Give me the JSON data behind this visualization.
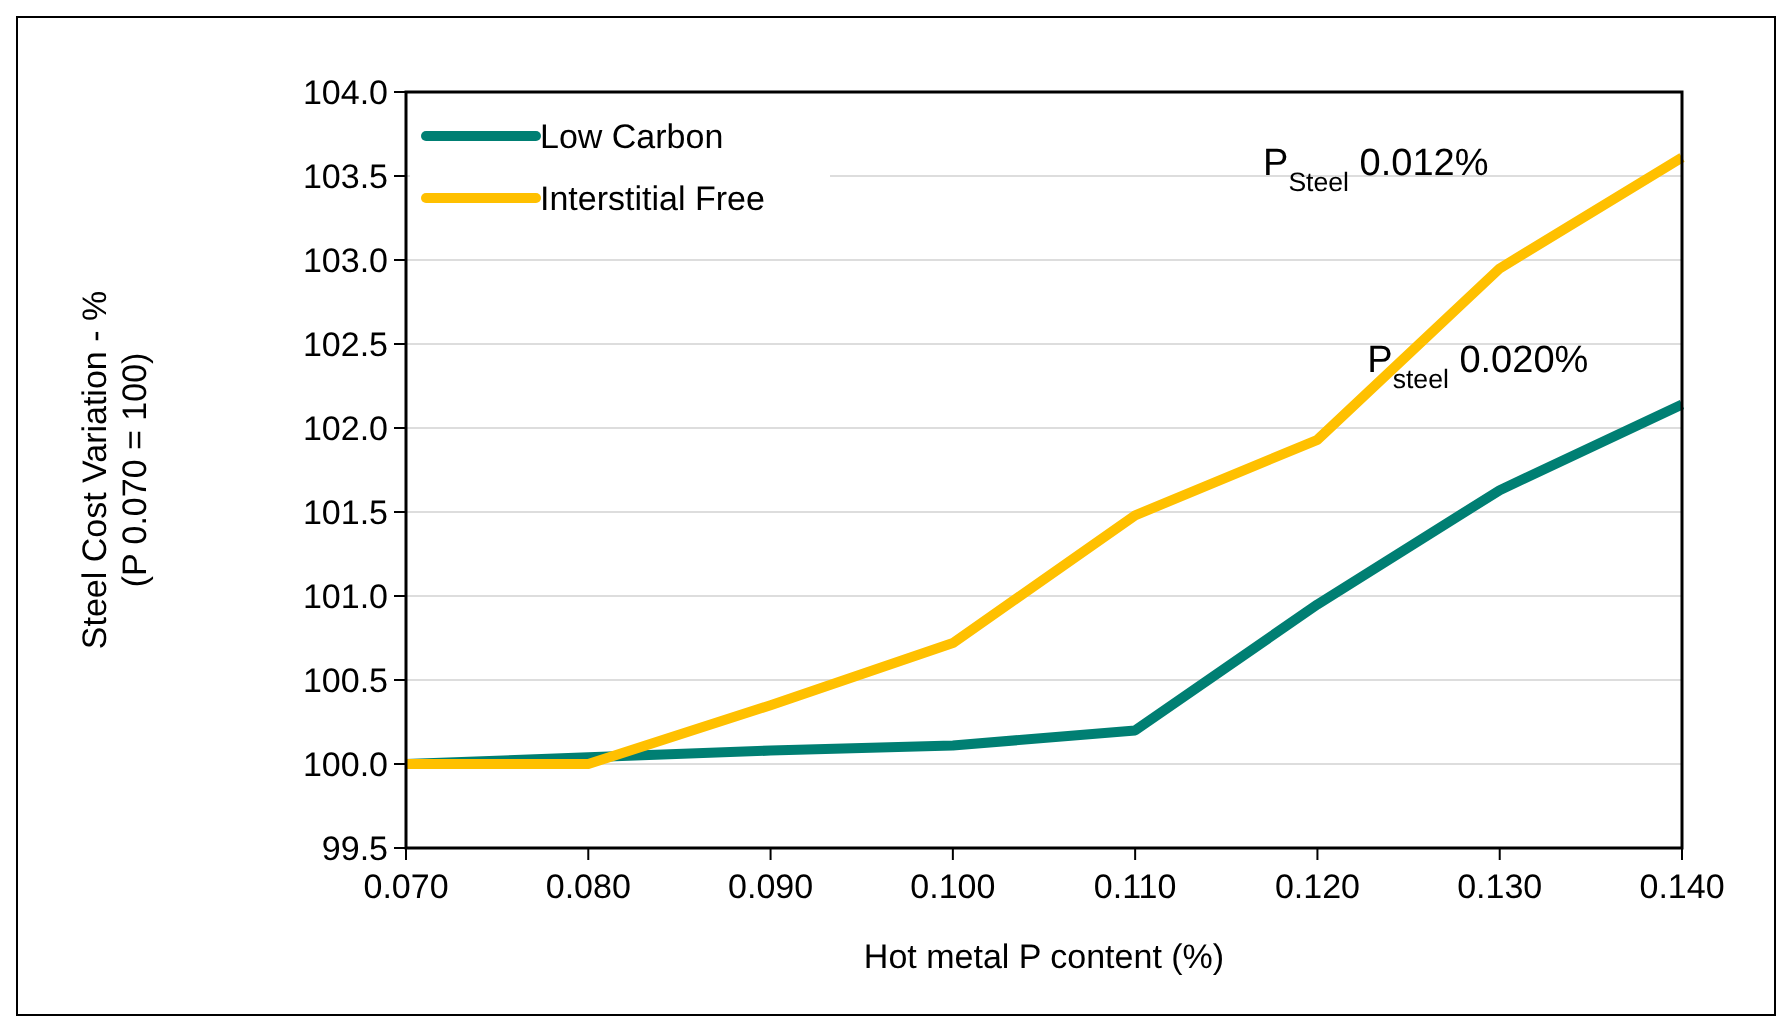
{
  "chart_data": {
    "type": "line",
    "xlabel": "Hot metal P content (%)",
    "ylabel": "Steel Cost Variation - %\n(P 0.070 = 100)",
    "x": [
      0.07,
      0.08,
      0.09,
      0.1,
      0.11,
      0.12,
      0.13,
      0.14
    ],
    "series": [
      {
        "name": "Low Carbon",
        "color": "#007f73",
        "values": [
          100.0,
          100.04,
          100.08,
          100.11,
          100.2,
          100.95,
          101.63,
          102.14
        ]
      },
      {
        "name": "Interstitial Free",
        "color": "#ffc000",
        "values": [
          100.0,
          100.0,
          100.35,
          100.72,
          101.48,
          101.93,
          102.95,
          103.61
        ]
      }
    ],
    "xlim": [
      0.07,
      0.14
    ],
    "xticks": [
      {
        "value": 0.07,
        "label": "0.070"
      },
      {
        "value": 0.08,
        "label": "0.080"
      },
      {
        "value": 0.09,
        "label": "0.090"
      },
      {
        "value": 0.1,
        "label": "0.100"
      },
      {
        "value": 0.11,
        "label": "0.110"
      },
      {
        "value": 0.12,
        "label": "0.120"
      },
      {
        "value": 0.13,
        "label": "0.130"
      },
      {
        "value": 0.14,
        "label": "0.140"
      }
    ],
    "ylim": [
      99.5,
      104.0
    ],
    "yticks": [
      {
        "value": 99.5,
        "label": "99.5"
      },
      {
        "value": 100,
        "label": "100.0"
      },
      {
        "value": 100.5,
        "label": "100.5"
      },
      {
        "value": 101,
        "label": "101.0"
      },
      {
        "value": 101.5,
        "label": "101.5"
      },
      {
        "value": 102,
        "label": "102.0"
      },
      {
        "value": 102.5,
        "label": "102.5"
      },
      {
        "value": 103,
        "label": "103.0"
      },
      {
        "value": 103.5,
        "label": "103.5"
      },
      {
        "value": 104,
        "label": "104.0"
      }
    ],
    "grid": "y",
    "legend": "top left",
    "marker": "none",
    "line_style": "solid",
    "annotations": [
      "P$_{Steel}$ 0.012%",
      "P$_{steel}$ 0.020%"
    ]
  }
}
